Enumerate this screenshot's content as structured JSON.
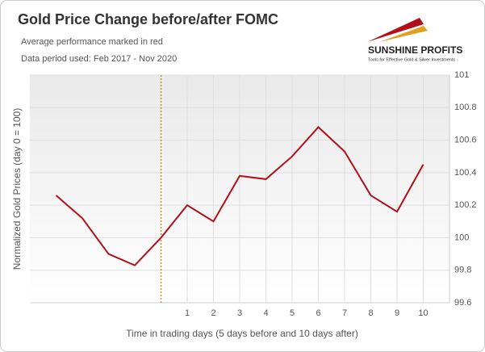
{
  "chart_data": {
    "type": "line",
    "title": "Gold Price Change before/after FOMC",
    "subtitle": [
      "Average performance marked in red",
      "Data period used: Feb 2017 - Nov 2020"
    ],
    "logo": {
      "name": "SUNSHINE PROFITS",
      "tagline": "Tools for Effective Gold & Silver Investments"
    },
    "x_label": "Time in trading days  (5 days before and 10 days after)",
    "y_label": "Normalized Gold Prices (day 0 = 100)",
    "x": [
      -4,
      -3,
      -2,
      -1,
      0,
      1,
      2,
      3,
      4,
      5,
      6,
      7,
      8,
      9,
      10
    ],
    "series": [
      {
        "name": "Average performance",
        "color": "#b0101a",
        "values": [
          100.26,
          100.12,
          99.9,
          99.83,
          100.0,
          100.2,
          100.1,
          100.38,
          100.36,
          100.5,
          100.68,
          100.53,
          100.26,
          100.16,
          100.45
        ]
      }
    ],
    "xlim": [
      -5,
      11
    ],
    "xticks": [
      1,
      2,
      3,
      4,
      5,
      6,
      7,
      8,
      9,
      10
    ],
    "ylim": [
      99.6,
      101
    ],
    "yticks": [
      99.6,
      99.8,
      100,
      100.2,
      100.4,
      100.6,
      100.8,
      101
    ],
    "vline": {
      "x": 0,
      "color": "#b8860b"
    },
    "grid": true
  }
}
